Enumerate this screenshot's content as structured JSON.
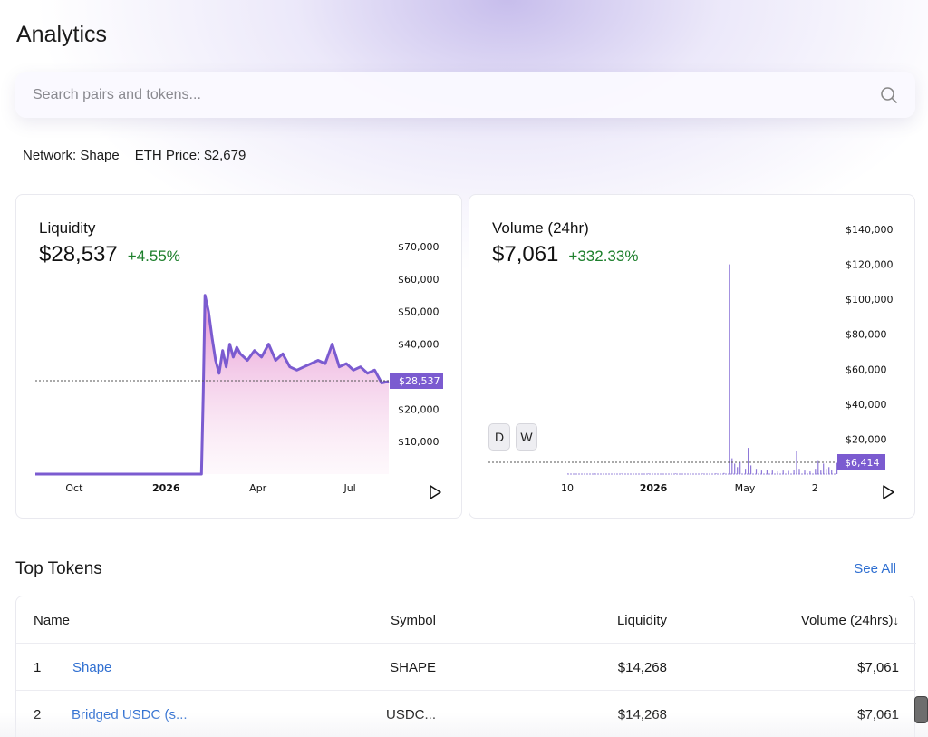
{
  "page": {
    "title": "Analytics"
  },
  "search": {
    "placeholder": "Search pairs and tokens..."
  },
  "stats": {
    "network": "Network: Shape",
    "eth_price": "ETH Price: $2,679"
  },
  "liquidity": {
    "label": "Liquidity",
    "value": "$28,537",
    "change": "+4.55%",
    "current_marker": "$28,537"
  },
  "volume": {
    "label": "Volume (24hr)",
    "value": "$7,061",
    "change": "+332.33%",
    "current_marker": "$6,414",
    "day_button": "D",
    "week_button": "W"
  },
  "colors": {
    "accent": "#7b5bd0",
    "positive": "#1d7f2c",
    "link": "#2f6fd1",
    "area_top": "#e48ccf"
  },
  "chart_data": [
    {
      "type": "area",
      "title": "Liquidity",
      "x_tick_labels": [
        "Oct",
        "2026",
        "Apr",
        "Jul"
      ],
      "y_tick_labels": [
        "$70,000",
        "$60,000",
        "$50,000",
        "$40,000",
        "$20,000",
        "$10,000"
      ],
      "ylim": [
        0,
        70000
      ],
      "x": [
        0,
        47,
        47.5,
        48,
        49,
        50,
        51,
        52,
        53,
        54,
        55,
        56,
        57,
        58,
        60,
        62,
        64,
        66,
        68,
        70,
        72,
        74,
        76,
        78,
        80,
        82,
        84,
        86,
        88,
        90,
        92,
        94,
        96,
        98,
        100
      ],
      "values": [
        0,
        0,
        25000,
        55000,
        50000,
        42000,
        35000,
        31000,
        38000,
        33000,
        40000,
        36000,
        39000,
        37000,
        35000,
        38000,
        36000,
        40000,
        35000,
        37000,
        33000,
        32000,
        33000,
        34000,
        35000,
        34000,
        40000,
        33000,
        34000,
        32000,
        33000,
        31000,
        32000,
        28000,
        28537
      ],
      "current_value": 28537,
      "grid": false
    },
    {
      "type": "bar",
      "title": "Volume (24hr)",
      "x_tick_labels": [
        "10",
        "2026",
        "May",
        "2"
      ],
      "y_tick_labels": [
        "$140,000",
        "$120,000",
        "$100,000",
        "$80,000",
        "$60,000",
        "$40,000",
        "$20,000"
      ],
      "ylim": [
        0,
        140000
      ],
      "x": [
        0,
        10,
        20,
        30,
        40,
        50,
        55,
        58,
        60,
        61,
        62,
        63,
        64,
        66,
        67,
        68,
        70,
        72,
        74,
        76,
        78,
        80,
        82,
        84,
        85,
        86,
        88,
        90,
        92,
        93,
        94,
        95,
        96,
        97,
        98,
        100
      ],
      "values": [
        300,
        300,
        300,
        300,
        300,
        300,
        400,
        600,
        120000,
        9000,
        6000,
        4000,
        7000,
        3000,
        15000,
        5000,
        3000,
        2000,
        2500,
        2000,
        1500,
        2000,
        1800,
        2500,
        13000,
        3000,
        2000,
        1500,
        3000,
        8000,
        2000,
        6000,
        3000,
        4000,
        2500,
        6414
      ],
      "current_value": 6414,
      "grid": false
    }
  ],
  "top_tokens": {
    "title": "Top Tokens",
    "see_all": "See All",
    "columns": {
      "name": "Name",
      "symbol": "Symbol",
      "liquidity": "Liquidity",
      "volume": "Volume (24hrs)",
      "sort_icon": "↓"
    },
    "rows": [
      {
        "rank": "1",
        "name": "Shape",
        "symbol": "SHAPE",
        "liquidity": "$14,268",
        "volume": "$7,061"
      },
      {
        "rank": "2",
        "name": "Bridged USDC (s...",
        "symbol": "USDC...",
        "liquidity": "$14,268",
        "volume": "$7,061"
      }
    ]
  }
}
